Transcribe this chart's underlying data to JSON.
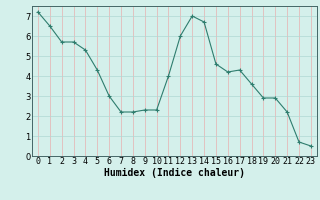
{
  "x": [
    0,
    1,
    2,
    3,
    4,
    5,
    6,
    7,
    8,
    9,
    10,
    11,
    12,
    13,
    14,
    15,
    16,
    17,
    18,
    19,
    20,
    21,
    22,
    23
  ],
  "y": [
    7.2,
    6.5,
    5.7,
    5.7,
    5.3,
    4.3,
    3.0,
    2.2,
    2.2,
    2.3,
    2.3,
    4.0,
    6.0,
    7.0,
    6.7,
    4.6,
    4.2,
    4.3,
    3.6,
    2.9,
    2.9,
    2.2,
    0.7,
    0.5
  ],
  "xlabel": "Humidex (Indice chaleur)",
  "ylim": [
    0,
    7.5
  ],
  "xlim": [
    -0.5,
    23.5
  ],
  "line_color": "#2e7d6e",
  "marker_color": "#2e7d6e",
  "bg_color": "#d4f0eb",
  "grid_color_v": "#e8b0b0",
  "grid_color_h": "#b0d8d4",
  "xlabel_fontsize": 7,
  "tick_fontsize": 6,
  "yticks": [
    0,
    1,
    2,
    3,
    4,
    5,
    6,
    7
  ],
  "xticks": [
    0,
    1,
    2,
    3,
    4,
    5,
    6,
    7,
    8,
    9,
    10,
    11,
    12,
    13,
    14,
    15,
    16,
    17,
    18,
    19,
    20,
    21,
    22,
    23
  ]
}
